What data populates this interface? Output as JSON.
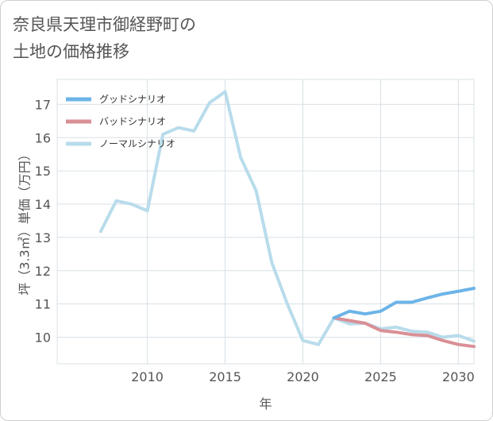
{
  "title_line1": "奈良県天理市御経野町の",
  "title_line2": "土地の価格推移",
  "chart_data": {
    "type": "line",
    "xlabel": "年",
    "ylabel": "坪（3.3㎡）単価（万円）",
    "xlim": [
      2004.2,
      2031
    ],
    "ylim": [
      9.2,
      17.75
    ],
    "xticks": [
      2010,
      2015,
      2020,
      2025,
      2030
    ],
    "yticks": [
      10,
      11,
      12,
      13,
      14,
      15,
      16,
      17
    ],
    "legend_position": "top-left",
    "series": [
      {
        "name": "グッドシナリオ",
        "color": "#6cb4e8",
        "x": [
          2022,
          2023,
          2024,
          2025,
          2026,
          2027,
          2028,
          2029,
          2030,
          2031
        ],
        "values": [
          10.58,
          10.78,
          10.7,
          10.78,
          11.05,
          11.05,
          11.18,
          11.3,
          11.38,
          11.47
        ]
      },
      {
        "name": "バッドシナリオ",
        "color": "#da8f96",
        "x": [
          2022,
          2023,
          2024,
          2025,
          2026,
          2027,
          2028,
          2029,
          2030,
          2031
        ],
        "values": [
          10.58,
          10.5,
          10.42,
          10.2,
          10.15,
          10.08,
          10.05,
          9.9,
          9.78,
          9.72
        ]
      },
      {
        "name": "ノーマルシナリオ",
        "color": "#b8dceb",
        "x": [
          2007,
          2008,
          2009,
          2010,
          2011,
          2012,
          2013,
          2014,
          2015,
          2016,
          2017,
          2018,
          2019,
          2020,
          2021,
          2022,
          2023,
          2024,
          2025,
          2026,
          2027,
          2028,
          2029,
          2030,
          2031
        ],
        "values": [
          13.18,
          14.1,
          14.0,
          13.8,
          16.1,
          16.3,
          16.2,
          17.05,
          17.38,
          15.4,
          14.4,
          12.25,
          11.0,
          9.9,
          9.78,
          10.58,
          10.4,
          10.42,
          10.25,
          10.3,
          10.18,
          10.15,
          10.0,
          10.05,
          9.88
        ]
      }
    ]
  }
}
